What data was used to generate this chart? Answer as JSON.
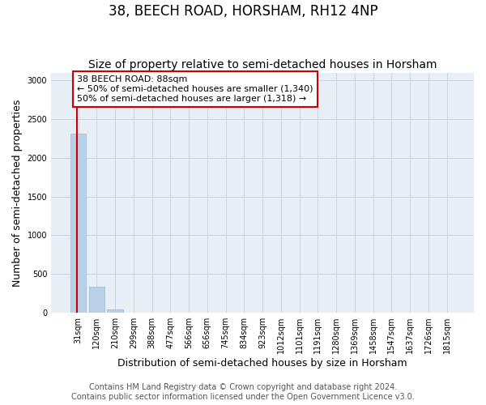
{
  "title": "38, BEECH ROAD, HORSHAM, RH12 4NP",
  "subtitle": "Size of property relative to semi-detached houses in Horsham",
  "xlabel": "Distribution of semi-detached houses by size in Horsham",
  "ylabel": "Number of semi-detached properties",
  "footer_line1": "Contains HM Land Registry data © Crown copyright and database right 2024.",
  "footer_line2": "Contains public sector information licensed under the Open Government Licence v3.0.",
  "categories": [
    "31sqm",
    "120sqm",
    "210sqm",
    "299sqm",
    "388sqm",
    "477sqm",
    "566sqm",
    "656sqm",
    "745sqm",
    "834sqm",
    "923sqm",
    "1012sqm",
    "1101sqm",
    "1191sqm",
    "1280sqm",
    "1369sqm",
    "1458sqm",
    "1547sqm",
    "1637sqm",
    "1726sqm",
    "1815sqm"
  ],
  "values": [
    2310,
    340,
    40,
    2,
    1,
    0,
    0,
    0,
    0,
    0,
    0,
    0,
    0,
    0,
    0,
    0,
    0,
    0,
    0,
    0,
    0
  ],
  "bar_color": "#b8d0e8",
  "bar_edge_color": "#9ab8d8",
  "grid_color": "#c8d4e0",
  "annotation_text": "38 BEECH ROAD: 88sqm\n← 50% of semi-detached houses are smaller (1,340)\n50% of semi-detached houses are larger (1,318) →",
  "annotation_box_color": "#ffffff",
  "annotation_box_edge_color": "#cc0000",
  "property_line_color": "#cc0000",
  "property_line_x": -0.08,
  "ylim": [
    0,
    3100
  ],
  "yticks": [
    0,
    500,
    1000,
    1500,
    2000,
    2500,
    3000
  ],
  "title_fontsize": 12,
  "subtitle_fontsize": 10,
  "label_fontsize": 9,
  "tick_fontsize": 7,
  "footer_fontsize": 7,
  "annotation_fontsize": 8
}
